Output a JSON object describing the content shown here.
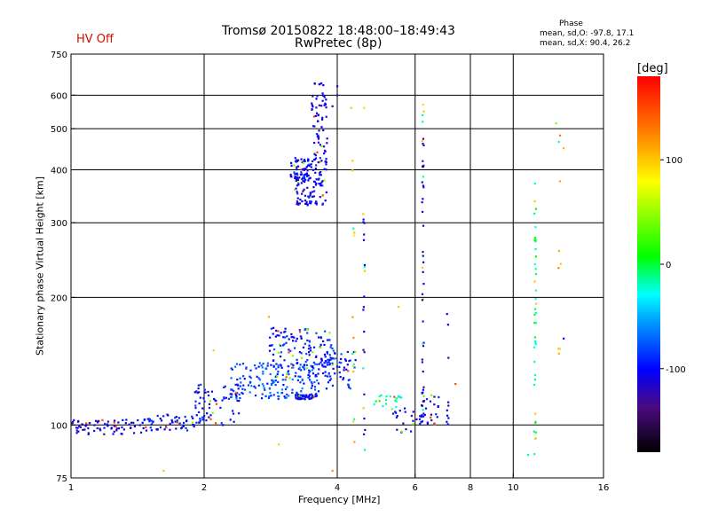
{
  "header": {
    "status": "HV Off",
    "title_line1": "Tromsø 20150822 18:48:00–18:49:43",
    "title_line2": "RwPretec (8p)",
    "phase_title": "Phase",
    "phase_o": "mean, sd,O: -97.8, 17.1",
    "phase_x": "mean, sd,X:  90.4, 26.2"
  },
  "colorbar": {
    "unit": "[deg]",
    "ticks": [
      {
        "value": 100,
        "label": "100"
      },
      {
        "value": 0,
        "label": "0"
      },
      {
        "value": -100,
        "label": "-100"
      }
    ],
    "range": [
      -180,
      180
    ]
  },
  "chart_data": {
    "type": "scatter",
    "title": "Tromsø 20150822 18:48:00–18:49:43",
    "subtitle": "RwPretec (8p)",
    "xlabel": "Frequency [MHz]",
    "ylabel": "Stationary phase Virtual Height [km]",
    "xscale": "log",
    "yscale": "log",
    "xlim": [
      1,
      16
    ],
    "ylim": [
      75,
      750
    ],
    "xticks": [
      {
        "value": 1,
        "label": "1"
      },
      {
        "value": 2,
        "label": "2"
      },
      {
        "value": 4,
        "label": "4"
      },
      {
        "value": 6,
        "label": "6"
      },
      {
        "value": 8,
        "label": "8"
      },
      {
        "value": 10,
        "label": "10"
      },
      {
        "value": 16,
        "label": "16"
      }
    ],
    "yticks": [
      {
        "value": 75,
        "label": "75"
      },
      {
        "value": 100,
        "label": "100"
      },
      {
        "value": 200,
        "label": "200"
      },
      {
        "value": 300,
        "label": "300"
      },
      {
        "value": 400,
        "label": "400"
      },
      {
        "value": 500,
        "label": "500"
      },
      {
        "value": 600,
        "label": "600"
      },
      {
        "value": 750,
        "label": "750"
      }
    ],
    "xgrid": [
      2,
      4,
      6,
      8,
      10
    ],
    "ygrid": [
      100,
      200,
      300,
      400,
      500,
      600
    ],
    "color_scale": "phase [deg]",
    "clusters": [
      {
        "x": [
          1.0,
          1.45
        ],
        "y": [
          95,
          103
        ],
        "phase": -110,
        "n": 70
      },
      {
        "x": [
          1.45,
          1.95
        ],
        "y": [
          97,
          106
        ],
        "phase": -100,
        "n": 60
      },
      {
        "x": [
          1.9,
          2.4
        ],
        "y": [
          100,
          125
        ],
        "phase": -100,
        "n": 70
      },
      {
        "x": [
          2.3,
          3.6
        ],
        "y": [
          115,
          140
        ],
        "phase": -80,
        "n": 160
      },
      {
        "x": [
          2.8,
          3.9
        ],
        "y": [
          130,
          170
        ],
        "phase": -95,
        "n": 140
      },
      {
        "x": [
          3.2,
          3.6
        ],
        "y": [
          115,
          118
        ],
        "phase": -100,
        "n": 50
      },
      {
        "x": [
          3.5,
          4.4
        ],
        "y": [
          120,
          150
        ],
        "phase": -90,
        "n": 70
      },
      {
        "x": [
          3.2,
          3.8
        ],
        "y": [
          330,
          430
        ],
        "phase": -105,
        "n": 140
      },
      {
        "x": [
          3.5,
          3.8
        ],
        "y": [
          430,
          640
        ],
        "phase": -110,
        "n": 60
      },
      {
        "x": [
          3.1,
          3.5
        ],
        "y": [
          380,
          420
        ],
        "phase": -100,
        "n": 30
      },
      {
        "x": [
          5.3,
          6.2
        ],
        "y": [
          96,
          110
        ],
        "phase": -110,
        "n": 25
      },
      {
        "x": [
          6.2,
          6.8
        ],
        "y": [
          100,
          120
        ],
        "phase": -105,
        "n": 25
      },
      {
        "x": [
          4.7,
          5.6
        ],
        "y": [
          110,
          118
        ],
        "phase": -15,
        "n": 20
      }
    ],
    "columns": [
      {
        "x": 6.25,
        "y": [
          90,
          560
        ],
        "phase": -110,
        "n": 45
      },
      {
        "x": 11.2,
        "y": [
          85,
          400
        ],
        "phase": -10,
        "n": 40
      },
      {
        "x": 4.6,
        "y": [
          80,
          320
        ],
        "phase": -110,
        "n": 22
      },
      {
        "x": 4.35,
        "y": [
          90,
          450
        ],
        "phase": 100,
        "n": 14
      },
      {
        "x": 7.1,
        "y": [
          95,
          210
        ],
        "phase": -110,
        "n": 10
      },
      {
        "x": 12.7,
        "y": [
          100,
          500
        ],
        "phase": 110,
        "n": 8
      }
    ],
    "points": [
      {
        "x": 4.0,
        "y": 630,
        "phase": -110
      },
      {
        "x": 4.0,
        "y": 600,
        "phase": -120
      },
      {
        "x": 3.68,
        "y": 640,
        "phase": -105
      },
      {
        "x": 3.9,
        "y": 565,
        "phase": -115
      },
      {
        "x": 4.6,
        "y": 560,
        "phase": 60
      },
      {
        "x": 4.3,
        "y": 560,
        "phase": 100
      },
      {
        "x": 6.25,
        "y": 570,
        "phase": 95
      },
      {
        "x": 2.8,
        "y": 180,
        "phase": 110
      },
      {
        "x": 2.1,
        "y": 150,
        "phase": 100
      },
      {
        "x": 1.62,
        "y": 78,
        "phase": 100
      },
      {
        "x": 2.95,
        "y": 90,
        "phase": 100
      },
      {
        "x": 3.9,
        "y": 78,
        "phase": 120
      },
      {
        "x": 5.5,
        "y": 190,
        "phase": 100
      },
      {
        "x": 7.4,
        "y": 125,
        "phase": 150
      },
      {
        "x": 10.8,
        "y": 85,
        "phase": -20
      },
      {
        "x": 13.0,
        "y": 160,
        "phase": -100
      },
      {
        "x": 12.5,
        "y": 515,
        "phase": 40
      },
      {
        "x": 13.0,
        "y": 450,
        "phase": 105
      },
      {
        "x": 12.8,
        "y": 240,
        "phase": 100
      }
    ]
  }
}
